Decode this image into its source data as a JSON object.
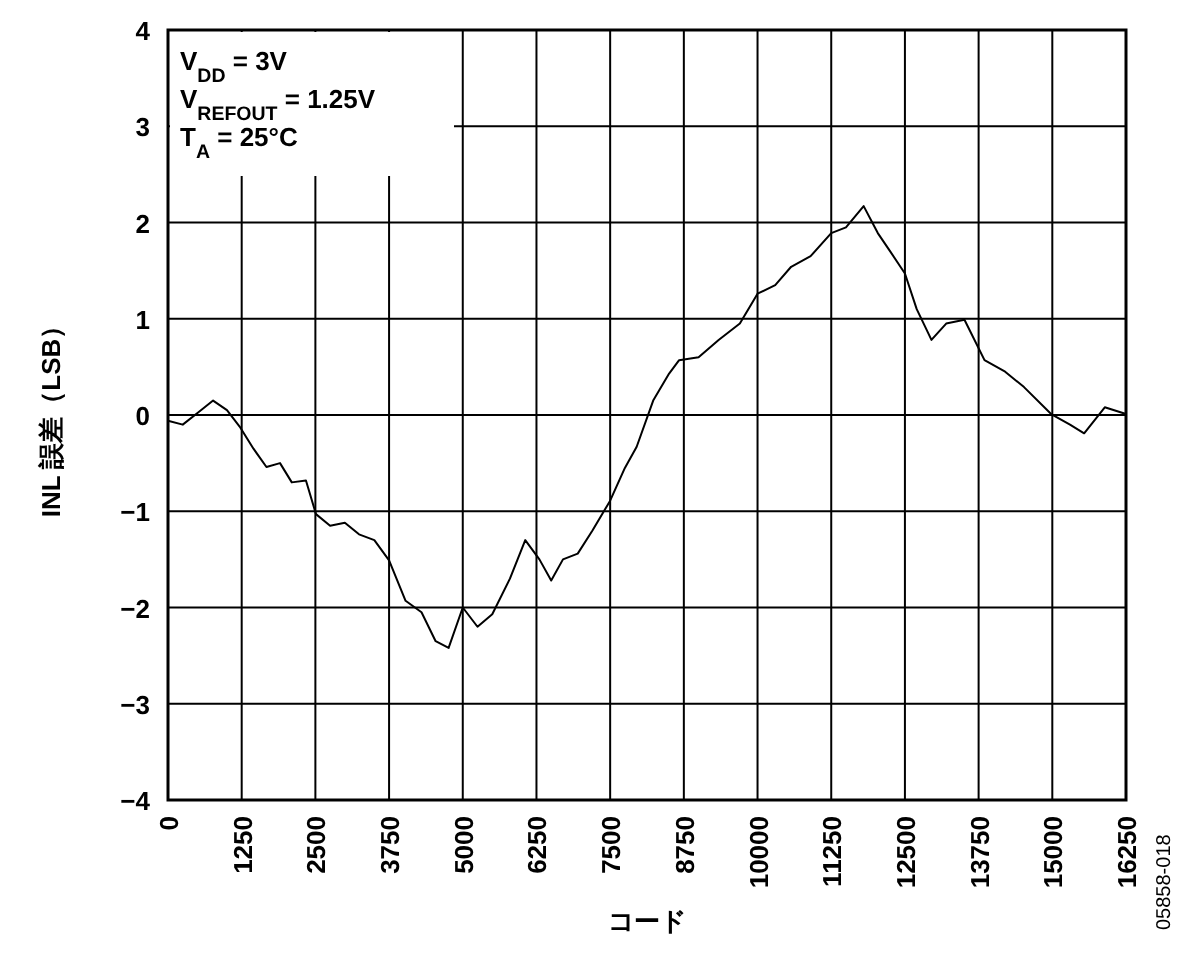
{
  "chart_data": {
    "type": "line",
    "xlabel": "コード",
    "ylabel": "INL 誤差（LSB）",
    "xlim": [
      0,
      16250
    ],
    "ylim": [
      -4,
      4
    ],
    "xticks": [
      0,
      1250,
      2500,
      3750,
      5000,
      6250,
      7500,
      8750,
      10000,
      11250,
      12500,
      13750,
      15000,
      16250
    ],
    "yticks": [
      {
        "value": -4,
        "label": "−4"
      },
      {
        "value": -3,
        "label": "−3"
      },
      {
        "value": -2,
        "label": "−2"
      },
      {
        "value": -1,
        "label": "−1"
      },
      0,
      1,
      2,
      3,
      4
    ],
    "grid": true,
    "marker": "none",
    "line_style": "solid",
    "series": [
      {
        "color": "#000000",
        "x": [
          0,
          250,
          500,
          765,
          1000,
          1215,
          1450,
          1670,
          1900,
          2100,
          2340,
          2510,
          2750,
          3000,
          3240,
          3500,
          3750,
          4030,
          4300,
          4540,
          4760,
          5000,
          5250,
          5500,
          5800,
          6060,
          6300,
          6500,
          6700,
          6950,
          7200,
          7500,
          7750,
          7950,
          8230,
          8500,
          8670,
          9000,
          9340,
          9700,
          10000,
          10300,
          10570,
          10900,
          11250,
          11500,
          11800,
          12040,
          12250,
          12500,
          12700,
          12950,
          13200,
          13510,
          13850,
          14200,
          14520,
          14980,
          15300,
          15540,
          15890,
          16250
        ],
        "values": [
          -0.06,
          -0.1,
          0.02,
          0.15,
          0.05,
          -0.12,
          -0.35,
          -0.54,
          -0.5,
          -0.7,
          -0.68,
          -1.03,
          -1.15,
          -1.12,
          -1.24,
          -1.3,
          -1.51,
          -1.93,
          -2.05,
          -2.35,
          -2.42,
          -2.0,
          -2.2,
          -2.07,
          -1.7,
          -1.3,
          -1.5,
          -1.72,
          -1.5,
          -1.44,
          -1.2,
          -0.89,
          -0.55,
          -0.33,
          0.15,
          0.43,
          0.57,
          0.6,
          0.78,
          0.95,
          1.26,
          1.35,
          1.54,
          1.65,
          1.89,
          1.95,
          2.17,
          1.89,
          1.7,
          1.47,
          1.1,
          0.78,
          0.95,
          0.99,
          0.57,
          0.45,
          0.29,
          0.01,
          -0.1,
          -0.19,
          0.08,
          0.01
        ]
      }
    ],
    "annotations": [
      "V$_{DD}$ = 3V",
      "V$_{REFOUT}$ = 1.25V",
      "T$_{A}$ = 25°C",
      "05858-018"
    ]
  }
}
